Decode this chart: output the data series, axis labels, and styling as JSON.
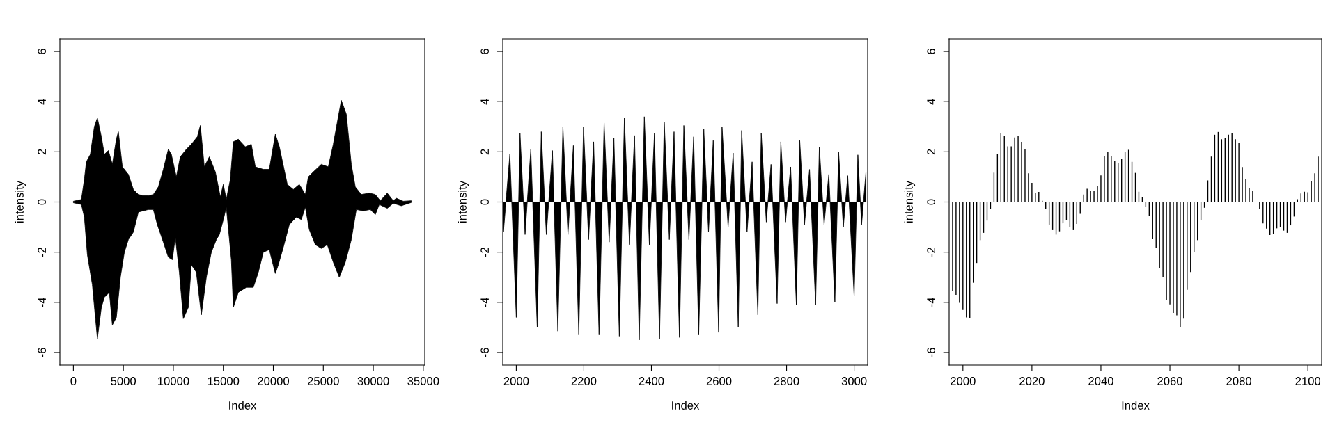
{
  "chart_data": [
    {
      "type": "area",
      "xlabel": "Index",
      "ylabel": "intensity",
      "xlim": [
        -1350,
        35150
      ],
      "ylim": [
        -6.5,
        6.5
      ],
      "xticks": [
        0,
        5000,
        10000,
        15000,
        20000,
        25000,
        30000,
        35000
      ],
      "yticks": [
        -6,
        -4,
        -2,
        0,
        2,
        4,
        6
      ],
      "grid": false,
      "legend": false,
      "series": [
        {
          "color": "#000000",
          "x": [
            0,
            800,
            1100,
            1300,
            1700,
            2100,
            2400,
            2800,
            3100,
            3500,
            3900,
            4300,
            4500,
            4900,
            5500,
            6000,
            6500,
            7000,
            7500,
            8000,
            8500,
            9000,
            9500,
            9800,
            10300,
            10700,
            11300,
            11800,
            12400,
            12700,
            13100,
            13600,
            14200,
            14700,
            15000,
            15300,
            15700,
            16000,
            16500,
            17200,
            17800,
            18200,
            19000,
            19600,
            20200,
            20600,
            21400,
            22000,
            22600,
            23200,
            23500,
            24000,
            24800,
            25500,
            26000,
            26800,
            27300,
            27800,
            28200,
            28800,
            29600,
            30200,
            30700,
            31400,
            32000,
            32300,
            33000,
            33800
          ],
          "values": [
            0.03,
            0.1,
            0.9,
            1.6,
            1.9,
            3.0,
            3.35,
            2.6,
            1.9,
            2.05,
            1.5,
            2.5,
            2.8,
            1.4,
            1.1,
            0.5,
            0.3,
            0.25,
            0.25,
            0.3,
            0.6,
            1.3,
            2.1,
            1.9,
            1.0,
            1.8,
            2.1,
            2.3,
            2.6,
            3.05,
            1.4,
            1.8,
            1.2,
            0.2,
            0.7,
            0.1,
            0.9,
            2.4,
            2.5,
            2.2,
            2.3,
            1.4,
            1.3,
            1.3,
            2.7,
            2.2,
            0.7,
            0.5,
            0.7,
            0.3,
            1.0,
            1.2,
            1.5,
            1.4,
            2.3,
            4.05,
            3.5,
            1.5,
            0.6,
            0.3,
            0.35,
            0.3,
            0.05,
            0.35,
            0.05,
            0.15,
            0.03,
            0.05
          ]
        },
        {
          "color": "#000000",
          "x": [
            0,
            800,
            1100,
            1400,
            1900,
            2400,
            2800,
            3100,
            3600,
            3900,
            4300,
            4700,
            5100,
            5500,
            6000,
            6500,
            7000,
            7500,
            8000,
            8400,
            9000,
            9500,
            9900,
            10200,
            10600,
            11000,
            11500,
            11800,
            12300,
            12800,
            13300,
            13800,
            14300,
            14600,
            15000,
            15300,
            15800,
            16000,
            16500,
            17300,
            18000,
            18500,
            19000,
            19600,
            20200,
            20500,
            21000,
            21600,
            22300,
            22800,
            23200,
            23600,
            24200,
            24800,
            25400,
            26000,
            26600,
            27200,
            27800,
            28300,
            29000,
            29700,
            30200,
            30600,
            31400,
            32000,
            32800,
            33800
          ],
          "values": [
            -0.03,
            -0.1,
            -0.6,
            -2.1,
            -3.3,
            -5.45,
            -4.2,
            -3.8,
            -3.6,
            -4.9,
            -4.6,
            -3.0,
            -2.0,
            -1.5,
            -1.2,
            -0.4,
            -0.35,
            -0.3,
            -0.3,
            -0.9,
            -1.6,
            -2.2,
            -2.3,
            -1.4,
            -2.8,
            -4.65,
            -4.2,
            -2.5,
            -2.8,
            -4.5,
            -3.0,
            -2.0,
            -1.5,
            -1.3,
            -0.7,
            -0.2,
            -2.3,
            -4.2,
            -3.6,
            -3.4,
            -3.4,
            -2.8,
            -2.0,
            -1.9,
            -2.85,
            -2.5,
            -1.8,
            -0.9,
            -0.6,
            -0.7,
            -0.2,
            -1.1,
            -1.7,
            -1.85,
            -1.7,
            -2.4,
            -3.0,
            -2.4,
            -1.5,
            -0.3,
            -0.35,
            -0.3,
            -0.5,
            -0.1,
            -0.25,
            -0.05,
            -0.15,
            -0.02
          ]
        }
      ]
    },
    {
      "type": "area",
      "xlabel": "Index",
      "ylabel": "intensity",
      "xlim": [
        1960,
        3040
      ],
      "ylim": [
        -6.5,
        6.5
      ],
      "xticks": [
        2000,
        2200,
        2400,
        2600,
        2800,
        3000
      ],
      "yticks": [
        -6,
        -4,
        -2,
        0,
        2,
        4,
        6
      ],
      "grid": false,
      "legend": false,
      "series": [
        {
          "color": "#000000",
          "x": [
            1962,
            1981,
            2000,
            2011,
            2026,
            2043,
            2062,
            2074,
            2089,
            2107,
            2123,
            2138,
            2153,
            2169,
            2185,
            2199,
            2214,
            2229,
            2245,
            2260,
            2275,
            2289,
            2305,
            2320,
            2335,
            2350,
            2364,
            2379,
            2394,
            2409,
            2424,
            2438,
            2453,
            2467,
            2483,
            2496,
            2511,
            2525,
            2540,
            2555,
            2569,
            2583,
            2599,
            2609,
            2627,
            2642,
            2657,
            2667,
            2683,
            2698,
            2715,
            2725,
            2740,
            2754,
            2772,
            2783,
            2797,
            2812,
            2829,
            2839,
            2853,
            2868,
            2886,
            2897,
            2911,
            2925,
            2943,
            2954,
            2968,
            2981,
            3000,
            3011,
            3022,
            3035
          ],
          "values": [
            -1.2,
            1.9,
            -4.6,
            2.75,
            -1.3,
            2.1,
            -5.0,
            2.8,
            -1.3,
            2.05,
            -5.15,
            3.0,
            -1.3,
            2.25,
            -5.3,
            3.0,
            -1.5,
            2.4,
            -5.3,
            3.15,
            -1.6,
            2.55,
            -5.35,
            3.35,
            -1.7,
            2.65,
            -5.5,
            3.4,
            -1.7,
            2.75,
            -5.45,
            3.2,
            -1.5,
            2.8,
            -5.4,
            3.05,
            -1.5,
            2.6,
            -5.3,
            2.9,
            -1.2,
            2.45,
            -5.2,
            3.0,
            -1.0,
            1.95,
            -5.0,
            2.85,
            -1.2,
            1.6,
            -4.5,
            2.75,
            -0.8,
            1.5,
            -4.05,
            2.4,
            -0.8,
            1.4,
            -4.1,
            2.45,
            -0.9,
            1.3,
            -4.1,
            2.2,
            -0.9,
            1.1,
            -4.0,
            2.0,
            -1.0,
            1.05,
            -3.75,
            1.88,
            -0.9,
            1.2
          ]
        }
      ]
    },
    {
      "type": "bar",
      "xlabel": "Index",
      "ylabel": "intensity",
      "xlim": [
        1996,
        2104
      ],
      "ylim": [
        -6.5,
        6.5
      ],
      "xticks": [
        2000,
        2020,
        2040,
        2060,
        2080,
        2100
      ],
      "yticks": [
        -6,
        -4,
        -2,
        0,
        2,
        4,
        6
      ],
      "grid": false,
      "legend": false,
      "series": [
        {
          "color": "#000000",
          "x": [
            1997,
            1998,
            1999,
            2000,
            2001,
            2002,
            2003,
            2004,
            2005,
            2006,
            2007,
            2008,
            2009,
            2010,
            2011,
            2012,
            2013,
            2014,
            2015,
            2016,
            2017,
            2018,
            2019,
            2020,
            2021,
            2022,
            2023,
            2024,
            2025,
            2026,
            2027,
            2028,
            2029,
            2030,
            2031,
            2032,
            2033,
            2034,
            2035,
            2036,
            2037,
            2038,
            2039,
            2040,
            2041,
            2042,
            2043,
            2044,
            2045,
            2046,
            2047,
            2048,
            2049,
            2050,
            2051,
            2052,
            2053,
            2054,
            2055,
            2056,
            2057,
            2058,
            2059,
            2060,
            2061,
            2062,
            2063,
            2064,
            2065,
            2066,
            2067,
            2068,
            2069,
            2070,
            2071,
            2072,
            2073,
            2074,
            2075,
            2076,
            2077,
            2078,
            2079,
            2080,
            2081,
            2082,
            2083,
            2084,
            2085,
            2086,
            2087,
            2088,
            2089,
            2090,
            2091,
            2092,
            2093,
            2094,
            2095,
            2096,
            2097,
            2098,
            2099,
            2100,
            2101,
            2102,
            2103
          ],
          "values": [
            -3.55,
            -3.7,
            -4.02,
            -4.3,
            -4.6,
            -4.63,
            -3.22,
            -2.43,
            -1.52,
            -1.23,
            -0.74,
            -0.27,
            1.17,
            1.9,
            2.75,
            2.62,
            2.22,
            2.22,
            2.57,
            2.64,
            2.4,
            2.09,
            1.14,
            0.76,
            0.36,
            0.4,
            0.05,
            -0.28,
            -0.9,
            -1.12,
            -1.3,
            -1.17,
            -0.85,
            -0.72,
            -1.0,
            -1.12,
            -0.87,
            -0.47,
            0.3,
            0.53,
            0.46,
            0.45,
            0.63,
            1.06,
            1.82,
            2.01,
            1.82,
            1.63,
            1.54,
            1.71,
            2.0,
            2.08,
            1.6,
            1.16,
            0.41,
            0.2,
            -0.2,
            -0.56,
            -1.48,
            -1.82,
            -2.62,
            -2.99,
            -3.9,
            -4.08,
            -4.42,
            -4.52,
            -5.0,
            -4.65,
            -3.5,
            -2.79,
            -2.0,
            -1.52,
            -0.72,
            -0.23,
            0.86,
            1.81,
            2.68,
            2.79,
            2.5,
            2.54,
            2.68,
            2.74,
            2.5,
            2.36,
            1.39,
            0.93,
            0.54,
            0.43,
            null,
            -0.29,
            -0.85,
            -1.06,
            -1.32,
            -1.28,
            -1.05,
            -1.0,
            -1.14,
            -1.23,
            -0.93,
            -0.58,
            0.11,
            0.34,
            0.41,
            0.39,
            0.82,
            1.14,
            1.81
          ]
        }
      ]
    }
  ]
}
